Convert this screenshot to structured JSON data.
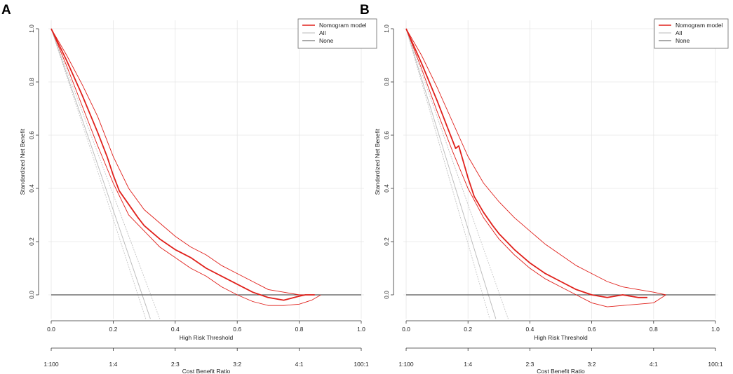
{
  "chart_data": [
    {
      "type": "line",
      "panel_label": "A",
      "title": "",
      "xlabel": "High Risk Threshold",
      "ylabel": "Standardized Net Benefit",
      "xlim": [
        0,
        1
      ],
      "ylim": [
        -0.08,
        1.0
      ],
      "grid": true,
      "x_ticks": [
        "0.0",
        "0.2",
        "0.4",
        "0.6",
        "0.8",
        "1.0"
      ],
      "y_ticks": [
        "0.0",
        "0.2",
        "0.4",
        "0.6",
        "0.8",
        "1.0"
      ],
      "secondary_axis": {
        "label": "Cost Benefit Ratio",
        "ticks": [
          "1:100",
          "1:4",
          "2:3",
          "3:2",
          "4:1",
          "100:1"
        ]
      },
      "legend": {
        "position": "top-right",
        "entries": [
          {
            "label": "Nomogram model",
            "color": "#e0201b"
          },
          {
            "label": "All",
            "color": "#b8b8b8"
          },
          {
            "label": "None",
            "color": "#555555"
          }
        ]
      },
      "series": [
        {
          "name": "Nomogram model",
          "role": "main",
          "color": "#e0201b",
          "x": [
            0.0,
            0.05,
            0.1,
            0.15,
            0.18,
            0.2,
            0.22,
            0.25,
            0.28,
            0.3,
            0.35,
            0.4,
            0.45,
            0.5,
            0.55,
            0.6,
            0.65,
            0.7,
            0.75,
            0.8,
            0.82,
            0.85
          ],
          "y": [
            1.0,
            0.88,
            0.75,
            0.61,
            0.52,
            0.45,
            0.39,
            0.34,
            0.29,
            0.26,
            0.21,
            0.17,
            0.14,
            0.1,
            0.07,
            0.04,
            0.01,
            -0.01,
            -0.02,
            -0.005,
            0.0,
            0.0
          ]
        },
        {
          "name": "Nomogram model upper CI",
          "role": "ci",
          "color": "#e0201b",
          "x": [
            0.0,
            0.05,
            0.1,
            0.15,
            0.2,
            0.25,
            0.3,
            0.35,
            0.4,
            0.45,
            0.5,
            0.55,
            0.6,
            0.65,
            0.7,
            0.75,
            0.8,
            0.85
          ],
          "y": [
            1.0,
            0.9,
            0.79,
            0.67,
            0.52,
            0.4,
            0.32,
            0.27,
            0.22,
            0.18,
            0.15,
            0.11,
            0.08,
            0.05,
            0.02,
            0.01,
            0.0,
            0.0
          ]
        },
        {
          "name": "Nomogram model lower CI",
          "role": "ci",
          "color": "#e0201b",
          "x": [
            0.0,
            0.05,
            0.1,
            0.15,
            0.2,
            0.25,
            0.3,
            0.35,
            0.4,
            0.45,
            0.5,
            0.55,
            0.6,
            0.65,
            0.7,
            0.75,
            0.8,
            0.84,
            0.87
          ],
          "y": [
            1.0,
            0.86,
            0.71,
            0.56,
            0.42,
            0.3,
            0.24,
            0.18,
            0.14,
            0.1,
            0.07,
            0.03,
            0.0,
            -0.025,
            -0.04,
            -0.04,
            -0.035,
            -0.02,
            0.0
          ]
        },
        {
          "name": "All",
          "role": "all",
          "color": "#b8b8b8",
          "x": [
            0.0,
            0.32
          ],
          "y": [
            1.0,
            -0.09
          ]
        },
        {
          "name": "All lower",
          "role": "all",
          "color": "#c4c4c4",
          "x": [
            0.0,
            0.305
          ],
          "y": [
            1.0,
            -0.09
          ]
        },
        {
          "name": "All upper",
          "role": "all",
          "color": "#c4c4c4",
          "x": [
            0.0,
            0.35
          ],
          "y": [
            1.0,
            -0.09
          ]
        },
        {
          "name": "None",
          "role": "none",
          "color": "#555555",
          "x": [
            0.0,
            1.0
          ],
          "y": [
            0.0,
            0.0
          ]
        }
      ]
    },
    {
      "type": "line",
      "panel_label": "B",
      "title": "",
      "xlabel": "High Risk Threshold",
      "ylabel": "Standardized Net Benefit",
      "xlim": [
        0,
        1
      ],
      "ylim": [
        -0.08,
        1.0
      ],
      "grid": true,
      "x_ticks": [
        "0.0",
        "0.2",
        "0.4",
        "0.6",
        "0.8",
        "1.0"
      ],
      "y_ticks": [
        "0.0",
        "0.2",
        "0.4",
        "0.6",
        "0.8",
        "1.0"
      ],
      "secondary_axis": {
        "label": "Cost Benefit Ratio",
        "ticks": [
          "1:100",
          "1:4",
          "2:3",
          "3:2",
          "4:1",
          "100:1"
        ]
      },
      "legend": {
        "position": "top-right",
        "entries": [
          {
            "label": "Nomogram model",
            "color": "#e0201b"
          },
          {
            "label": "All",
            "color": "#b8b8b8"
          },
          {
            "label": "None",
            "color": "#555555"
          }
        ]
      },
      "series": [
        {
          "name": "Nomogram model",
          "role": "main",
          "color": "#e0201b",
          "x": [
            0.0,
            0.05,
            0.1,
            0.13,
            0.16,
            0.17,
            0.18,
            0.2,
            0.22,
            0.25,
            0.28,
            0.3,
            0.35,
            0.4,
            0.45,
            0.5,
            0.55,
            0.6,
            0.65,
            0.7,
            0.75,
            0.78
          ],
          "y": [
            1.0,
            0.87,
            0.73,
            0.64,
            0.55,
            0.56,
            0.52,
            0.44,
            0.37,
            0.31,
            0.26,
            0.23,
            0.17,
            0.12,
            0.08,
            0.05,
            0.02,
            0.0,
            -0.01,
            0.0,
            -0.01,
            -0.01
          ]
        },
        {
          "name": "Nomogram model upper CI",
          "role": "ci",
          "color": "#e0201b",
          "x": [
            0.0,
            0.05,
            0.1,
            0.15,
            0.2,
            0.25,
            0.3,
            0.35,
            0.4,
            0.45,
            0.5,
            0.55,
            0.6,
            0.65,
            0.7,
            0.75,
            0.8,
            0.84
          ],
          "y": [
            1.0,
            0.9,
            0.78,
            0.65,
            0.52,
            0.42,
            0.35,
            0.29,
            0.24,
            0.19,
            0.15,
            0.11,
            0.08,
            0.05,
            0.03,
            0.02,
            0.01,
            0.0
          ]
        },
        {
          "name": "Nomogram model lower CI",
          "role": "ci",
          "color": "#e0201b",
          "x": [
            0.0,
            0.05,
            0.1,
            0.15,
            0.2,
            0.25,
            0.3,
            0.35,
            0.4,
            0.45,
            0.5,
            0.55,
            0.6,
            0.65,
            0.7,
            0.75,
            0.8,
            0.84
          ],
          "y": [
            1.0,
            0.85,
            0.69,
            0.54,
            0.4,
            0.29,
            0.21,
            0.15,
            0.1,
            0.06,
            0.03,
            0.0,
            -0.03,
            -0.045,
            -0.04,
            -0.035,
            -0.03,
            0.0
          ]
        },
        {
          "name": "All",
          "role": "all",
          "color": "#b8b8b8",
          "x": [
            0.0,
            0.29
          ],
          "y": [
            1.0,
            -0.09
          ]
        },
        {
          "name": "All lower",
          "role": "all",
          "color": "#c4c4c4",
          "x": [
            0.0,
            0.27
          ],
          "y": [
            1.0,
            -0.09
          ]
        },
        {
          "name": "All upper",
          "role": "all",
          "color": "#c4c4c4",
          "x": [
            0.0,
            0.33
          ],
          "y": [
            1.0,
            -0.09
          ]
        },
        {
          "name": "None",
          "role": "none",
          "color": "#555555",
          "x": [
            0.0,
            1.0
          ],
          "y": [
            0.0,
            0.0
          ]
        }
      ]
    }
  ]
}
